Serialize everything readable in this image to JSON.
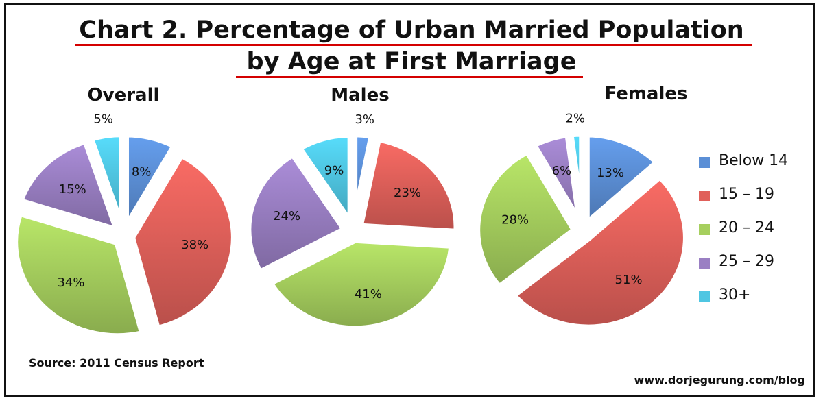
{
  "title_line_1": "Chart 2. Percentage of Urban Married Population",
  "title_line_2": "by Age at First Marriage",
  "source": "Source: 2011 Census Report",
  "website": "www.dorjegurung.com/blog",
  "chart_data": [
    {
      "type": "pie",
      "title": "Overall",
      "categories": [
        "Below 14",
        "15 – 19",
        "20 – 24",
        "25 – 29",
        "30+"
      ],
      "values": [
        8,
        38,
        34,
        15,
        5
      ],
      "labels": [
        "8%",
        "38%",
        "34%",
        "15%",
        "5%"
      ],
      "exploded": true,
      "legend": "right"
    },
    {
      "type": "pie",
      "title": "Males",
      "categories": [
        "Below 14",
        "15 – 19",
        "20 – 24",
        "25 – 29",
        "30+"
      ],
      "values": [
        3,
        23,
        41,
        24,
        9
      ],
      "labels": [
        "3%",
        "23%",
        "41%",
        "24%",
        "9%"
      ],
      "exploded": true,
      "legend": "right"
    },
    {
      "type": "pie",
      "title": "Females",
      "categories": [
        "Below 14",
        "15 – 19",
        "20 – 24",
        "25 – 29",
        "30+"
      ],
      "values": [
        13,
        51,
        28,
        6,
        2
      ],
      "labels": [
        "13%",
        "51%",
        "28%",
        "6%",
        "2%"
      ],
      "exploded": true,
      "legend": "right"
    }
  ],
  "legend": {
    "items": [
      {
        "label": "Below 14",
        "color": "#5b8fd6"
      },
      {
        "label": "15 – 19",
        "color": "#e0605a"
      },
      {
        "label": "20 – 24",
        "color": "#a6cf5e"
      },
      {
        "label": "25 – 29",
        "color": "#9a7fc3"
      },
      {
        "label": "30+",
        "color": "#4fc6e2"
      }
    ]
  }
}
